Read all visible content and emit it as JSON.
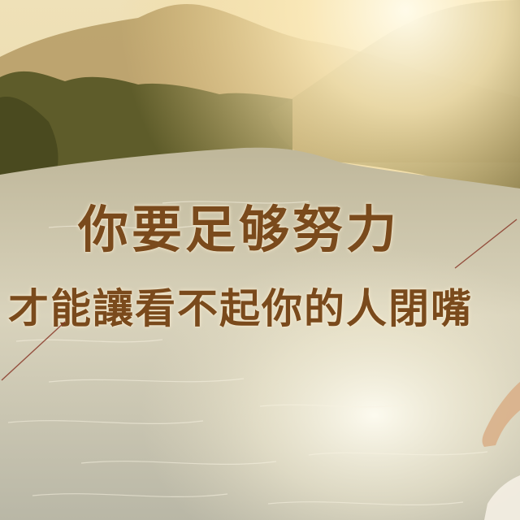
{
  "quote": {
    "line1": "你要足够努力",
    "line2": "才能讓看不起你的人閉嘴"
  },
  "colors": {
    "text": "#7a4a1c",
    "sky": "#f3e6c2",
    "sun": "#fff6dc",
    "water": "#cfc9b2",
    "forest": "#5b5a2a",
    "deco_line": "#8a3a2a"
  }
}
